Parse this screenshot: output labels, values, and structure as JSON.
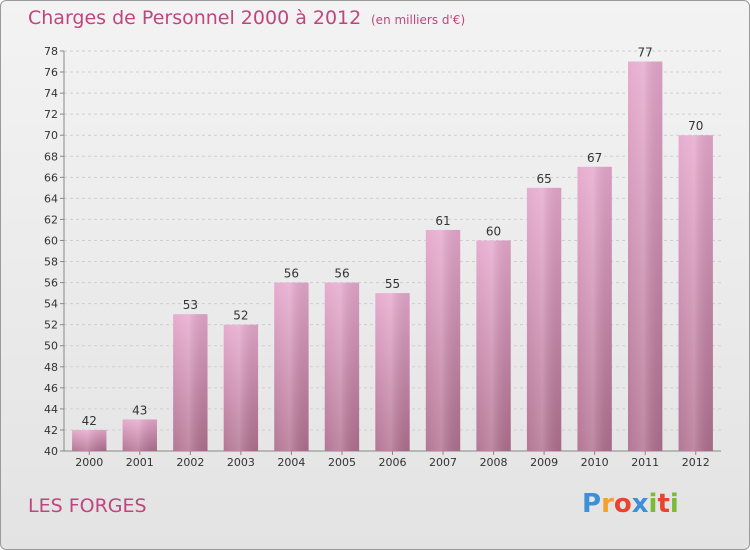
{
  "header": {
    "title": "Charges de Personnel 2000 à 2012",
    "subtitle": "(en milliers d'€)"
  },
  "footer": {
    "place": "LES FORGES",
    "logo_letters": [
      "P",
      "r",
      "o",
      "x",
      "i",
      "t",
      "i"
    ],
    "logo_colors": [
      "#3d8fd8",
      "#f0a22b",
      "#e7452f",
      "#3d8fd8",
      "#7cbb35",
      "#e7452f",
      "#7cbb35"
    ]
  },
  "colors": {
    "accent": "#c0457f",
    "bar_top": "#e6a8cd",
    "bar_bottom": "#b0708f"
  },
  "chart_data": {
    "type": "bar",
    "title": "Charges de Personnel 2000 à 2012",
    "subtitle": "(en milliers d'€)",
    "categories": [
      "2000",
      "2001",
      "2002",
      "2003",
      "2004",
      "2005",
      "2006",
      "2007",
      "2008",
      "2009",
      "2010",
      "2011",
      "2012"
    ],
    "values": [
      42,
      43,
      53,
      52,
      56,
      56,
      55,
      61,
      60,
      65,
      67,
      77,
      70
    ],
    "ylim": [
      40,
      78
    ],
    "yticks": [
      40,
      42,
      44,
      46,
      48,
      50,
      52,
      54,
      56,
      58,
      60,
      62,
      64,
      66,
      68,
      70,
      72,
      74,
      76,
      78
    ],
    "grid": true,
    "data_labels": true
  }
}
